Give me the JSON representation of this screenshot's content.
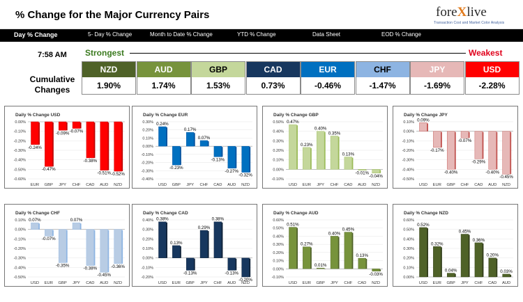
{
  "header": {
    "title": "% Change for the Major Currency Pairs",
    "logo": {
      "main": "fore",
      "x": "X",
      "rest": "live",
      "tagline": "Transaction Cost and Market Color Analysis"
    }
  },
  "nav": [
    {
      "label": "Day % Change",
      "bold": true
    },
    {
      "label": "5- Day % Change",
      "bold": false
    },
    {
      "label": "Month to Date % Change",
      "bold": false
    },
    {
      "label": "YTD % Change",
      "bold": false
    },
    {
      "label": "Data Sheet",
      "bold": false
    },
    {
      "label": "EOD % Change",
      "bold": false
    }
  ],
  "time": "7:58 AM",
  "strongest_label": "Strongest",
  "weakest_label": "Weakest",
  "cumulative_label": [
    "Cumulative",
    "Changes"
  ],
  "currencies": [
    {
      "code": "NZD",
      "value": "1.90%",
      "color": "#4f6228"
    },
    {
      "code": "AUD",
      "value": "1.74%",
      "color": "#77933c"
    },
    {
      "code": "GBP",
      "value": "1.53%",
      "color": "#c4d79b",
      "text": "#000"
    },
    {
      "code": "CAD",
      "value": "0.73%",
      "color": "#17375e"
    },
    {
      "code": "EUR",
      "value": "-0.46%",
      "color": "#0070c0"
    },
    {
      "code": "CHF",
      "value": "-1.47%",
      "color": "#8db4e2",
      "text": "#000"
    },
    {
      "code": "JPY",
      "value": "-1.69%",
      "color": "#e6b8b7"
    },
    {
      "code": "USD",
      "value": "-2.28%",
      "color": "#ff0000"
    }
  ],
  "chart_data": [
    {
      "type": "bar",
      "title": "Daily % Change USD",
      "categories": [
        "EUR",
        "GBP",
        "JPY",
        "CHF",
        "CAD",
        "AUD",
        "NZD"
      ],
      "values": [
        -0.24,
        -0.47,
        -0.09,
        -0.07,
        -0.38,
        -0.51,
        -0.52
      ],
      "labels": [
        "-0.24%",
        "-0.47%",
        "-0.09%",
        "-0.07%",
        "-0.38%",
        "-0.51%",
        "-0.52%"
      ],
      "ylim": [
        -0.6,
        0.0
      ],
      "yticks": [
        0.0,
        -0.1,
        -0.2,
        -0.3,
        -0.4,
        -0.5,
        -0.6
      ],
      "yticklabels": [
        "0.00%",
        "-0.10%",
        "-0.20%",
        "-0.30%",
        "-0.40%",
        "-0.50%",
        "-0.60%"
      ],
      "color": "#ff0000",
      "dark": "#c00000"
    },
    {
      "type": "bar",
      "title": "Daily % Change EUR",
      "categories": [
        "USD",
        "GBP",
        "JPY",
        "CHF",
        "CAD",
        "AUD",
        "NZD"
      ],
      "values": [
        0.24,
        -0.23,
        0.17,
        0.07,
        -0.13,
        -0.27,
        -0.32
      ],
      "labels": [
        "0.24%",
        "-0.23%",
        "0.17%",
        "0.07%",
        "-0.13%",
        "-0.27%",
        "-0.32%"
      ],
      "ylim": [
        -0.4,
        0.3
      ],
      "yticks": [
        0.3,
        0.2,
        0.1,
        0.0,
        -0.1,
        -0.2,
        -0.3,
        -0.4
      ],
      "yticklabels": [
        "0.30%",
        "0.20%",
        "0.10%",
        "0.00%",
        "-0.10%",
        "-0.20%",
        "-0.30%",
        "-0.40%"
      ],
      "color": "#0070c0",
      "dark": "#00509e"
    },
    {
      "type": "bar",
      "title": "Daily % Change GBP",
      "categories": [
        "USD",
        "EUR",
        "JPY",
        "CHF",
        "CAD",
        "AUD",
        "NZD"
      ],
      "values": [
        0.47,
        0.23,
        0.4,
        0.35,
        0.13,
        -0.01,
        -0.04
      ],
      "labels": [
        "0.47%",
        "0.23%",
        "0.40%",
        "0.35%",
        "0.13%",
        "-0.01%",
        "-0.04%"
      ],
      "ylim": [
        -0.1,
        0.5
      ],
      "yticks": [
        0.5,
        0.4,
        0.3,
        0.2,
        0.1,
        0.0,
        -0.1
      ],
      "yticklabels": [
        "0.50%",
        "0.40%",
        "0.30%",
        "0.20%",
        "0.10%",
        "0.00%",
        "-0.10%"
      ],
      "color": "#c4d79b",
      "dark": "#9bbb59"
    },
    {
      "type": "bar",
      "title": "Daily % Change JPY",
      "categories": [
        "USD",
        "EUR",
        "GBP",
        "CHF",
        "CAD",
        "AUD",
        "NZD"
      ],
      "values": [
        0.09,
        -0.17,
        -0.4,
        -0.07,
        -0.29,
        -0.4,
        -0.45
      ],
      "labels": [
        "0.09%",
        "-0.17%",
        "-0.40%",
        "-0.07%",
        "-0.29%",
        "-0.40%",
        "-0.45%"
      ],
      "ylim": [
        -0.5,
        0.1
      ],
      "yticks": [
        0.1,
        0.0,
        -0.1,
        -0.2,
        -0.3,
        -0.4,
        -0.5
      ],
      "yticklabels": [
        "0.10%",
        "0.00%",
        "-0.10%",
        "-0.20%",
        "-0.30%",
        "-0.40%",
        "-0.50%"
      ],
      "color": "#e6b8b7",
      "dark": "#c0504d"
    },
    {
      "type": "bar",
      "title": "Daily % Change CHF",
      "categories": [
        "USD",
        "EUR",
        "GBP",
        "JPY",
        "CAD",
        "AUD",
        "NZD"
      ],
      "values": [
        0.07,
        -0.07,
        -0.35,
        0.07,
        -0.38,
        -0.45,
        -0.36
      ],
      "labels": [
        "0.07%",
        "-0.07%",
        "-0.35%",
        "0.07%",
        "-0.38%",
        "-0.45%",
        "-0.36%"
      ],
      "ylim": [
        -0.5,
        0.1
      ],
      "yticks": [
        0.1,
        0.0,
        -0.1,
        -0.2,
        -0.3,
        -0.4,
        -0.5
      ],
      "yticklabels": [
        "0.10%",
        "0.00%",
        "-0.10%",
        "-0.20%",
        "-0.30%",
        "-0.40%",
        "-0.50%"
      ],
      "color": "#b8cce4",
      "dark": "#8db4e2"
    },
    {
      "type": "bar",
      "title": "Daily % Change CAD",
      "categories": [
        "USD",
        "EUR",
        "GBP",
        "JPY",
        "CHF",
        "AUD",
        "NZD"
      ],
      "values": [
        0.38,
        0.13,
        -0.13,
        0.29,
        0.38,
        -0.13,
        -0.2
      ],
      "labels": [
        "0.38%",
        "0.13%",
        "-0.13%",
        "0.29%",
        "0.38%",
        "-0.13%",
        "-0.20%"
      ],
      "ylim": [
        -0.2,
        0.4
      ],
      "yticks": [
        0.4,
        0.3,
        0.2,
        0.1,
        0.0,
        -0.1,
        -0.2
      ],
      "yticklabels": [
        "0.40%",
        "0.30%",
        "0.20%",
        "0.10%",
        "0.00%",
        "-0.10%",
        "-0.20%"
      ],
      "color": "#17375e",
      "dark": "#0c1f36"
    },
    {
      "type": "bar",
      "title": "Daily % Change AUD",
      "categories": [
        "USD",
        "EUR",
        "GBP",
        "JPY",
        "CHF",
        "CAD",
        "NZD"
      ],
      "values": [
        0.51,
        0.27,
        0.01,
        0.4,
        0.45,
        0.13,
        -0.03
      ],
      "labels": [
        "0.51%",
        "0.27%",
        "0.01%",
        "0.40%",
        "0.45%",
        "0.13%",
        "-0.03%"
      ],
      "ylim": [
        -0.1,
        0.6
      ],
      "yticks": [
        0.6,
        0.5,
        0.4,
        0.3,
        0.2,
        0.1,
        0.0,
        -0.1
      ],
      "yticklabels": [
        "0.60%",
        "0.50%",
        "0.40%",
        "0.30%",
        "0.20%",
        "0.10%",
        "0.00%",
        "-0.10%"
      ],
      "color": "#77933c",
      "dark": "#4f6228"
    },
    {
      "type": "bar",
      "title": "Daily % Change NZD",
      "categories": [
        "USD",
        "EUR",
        "GBP",
        "JPY",
        "CHF",
        "CAD",
        "AUD"
      ],
      "values": [
        0.52,
        0.32,
        0.04,
        0.45,
        0.36,
        0.2,
        0.03
      ],
      "labels": [
        "0.52%",
        "0.32%",
        "0.04%",
        "0.45%",
        "0.36%",
        "0.20%",
        "0.03%"
      ],
      "ylim": [
        0.0,
        0.6
      ],
      "yticks": [
        0.6,
        0.5,
        0.4,
        0.3,
        0.2,
        0.1,
        0.0
      ],
      "yticklabels": [
        "0.60%",
        "0.50%",
        "0.40%",
        "0.30%",
        "0.20%",
        "0.10%",
        "0.00%"
      ],
      "color": "#4f6228",
      "dark": "#2f3b17"
    }
  ]
}
